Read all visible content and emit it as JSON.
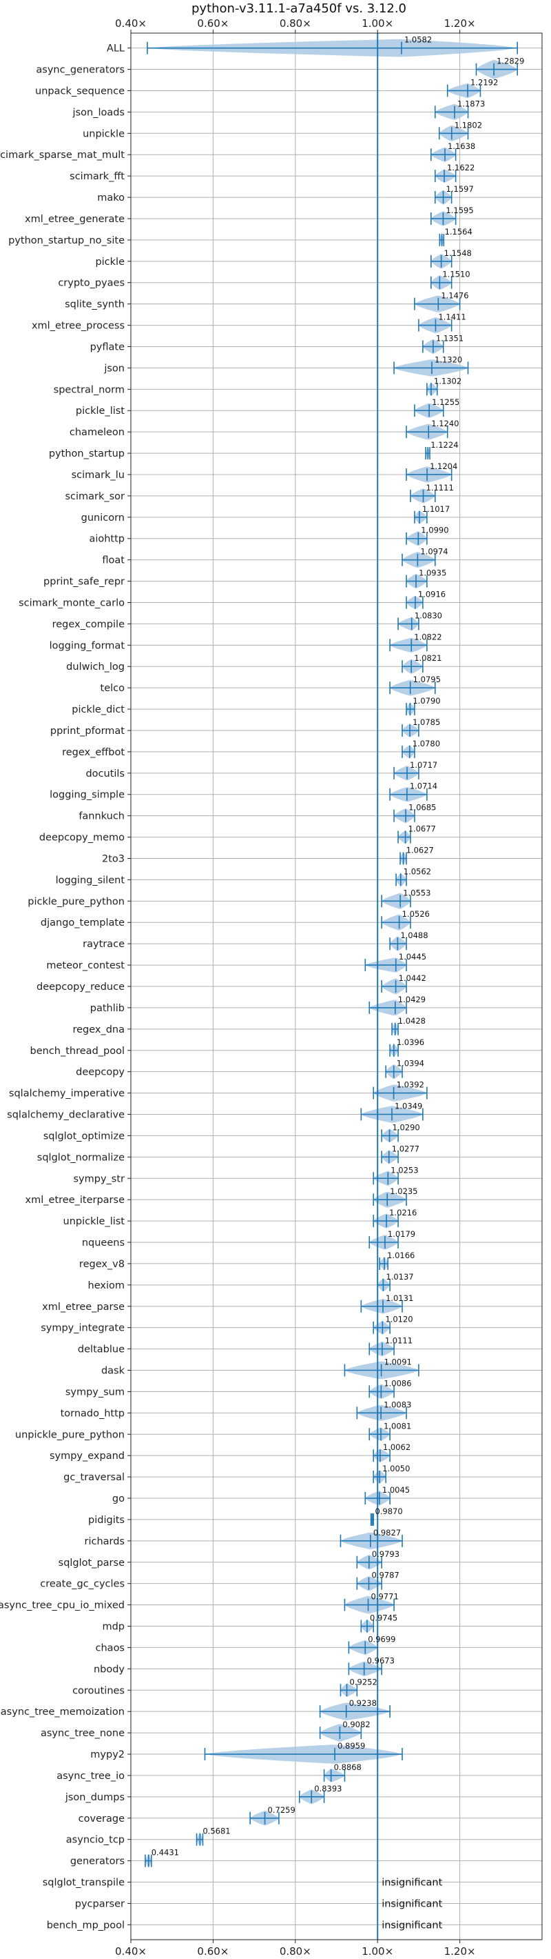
{
  "chart_data": {
    "type": "violin",
    "title": "python-v3.11.1-a7a450f vs. 3.12.0",
    "xlim": [
      0.4,
      1.4
    ],
    "reference_x": 1.0,
    "x_ticks": [
      0.4,
      0.6,
      0.8,
      1.0,
      1.2
    ],
    "x_tick_labels": [
      "0.40×",
      "0.60×",
      "0.80×",
      "1.00×",
      "1.20×"
    ],
    "insignificant_label": "insignificant",
    "colors": {
      "accent": "#1f77b4",
      "violin": "#a9c8e4",
      "grid": "#b0b0b0",
      "ref": "#1f77b4"
    },
    "benchmarks": [
      {
        "name": "ALL",
        "value": 1.0582,
        "label": "1.0582",
        "min": 0.44,
        "max": 1.34,
        "width": 0.42
      },
      {
        "name": "async_generators",
        "value": 1.2829,
        "label": "1.2829",
        "min": 1.24,
        "max": 1.34,
        "width": 0.45
      },
      {
        "name": "unpack_sequence",
        "value": 1.2192,
        "label": "1.2192",
        "min": 1.17,
        "max": 1.25,
        "width": 0.35
      },
      {
        "name": "json_loads",
        "value": 1.1873,
        "label": "1.1873",
        "min": 1.14,
        "max": 1.22,
        "width": 0.38
      },
      {
        "name": "unpickle",
        "value": 1.1802,
        "label": "1.1802",
        "min": 1.15,
        "max": 1.22,
        "width": 0.38
      },
      {
        "name": "scimark_sparse_mat_mult",
        "value": 1.1638,
        "label": "1.1638",
        "min": 1.13,
        "max": 1.19,
        "width": 0.35
      },
      {
        "name": "scimark_fft",
        "value": 1.1622,
        "label": "1.1622",
        "min": 1.14,
        "max": 1.19,
        "width": 0.32
      },
      {
        "name": "mako",
        "value": 1.1597,
        "label": "1.1597",
        "min": 1.14,
        "max": 1.18,
        "width": 0.35
      },
      {
        "name": "xml_etree_generate",
        "value": 1.1595,
        "label": "1.1595",
        "min": 1.13,
        "max": 1.19,
        "width": 0.35
      },
      {
        "name": "python_startup_no_site",
        "value": 1.1564,
        "label": "1.1564",
        "min": 1.151,
        "max": 1.161,
        "width": 0.32
      },
      {
        "name": "pickle",
        "value": 1.1548,
        "label": "1.1548",
        "min": 1.13,
        "max": 1.18,
        "width": 0.35
      },
      {
        "name": "crypto_pyaes",
        "value": 1.151,
        "label": "1.1510",
        "min": 1.13,
        "max": 1.18,
        "width": 0.35
      },
      {
        "name": "sqlite_synth",
        "value": 1.1476,
        "label": "1.1476",
        "min": 1.09,
        "max": 1.2,
        "width": 0.4
      },
      {
        "name": "xml_etree_process",
        "value": 1.1411,
        "label": "1.1411",
        "min": 1.1,
        "max": 1.18,
        "width": 0.38
      },
      {
        "name": "pyflate",
        "value": 1.1351,
        "label": "1.1351",
        "min": 1.11,
        "max": 1.16,
        "width": 0.35
      },
      {
        "name": "json",
        "value": 1.132,
        "label": "1.1320",
        "min": 1.04,
        "max": 1.22,
        "width": 0.4
      },
      {
        "name": "spectral_norm",
        "value": 1.1302,
        "label": "1.1302",
        "min": 1.12,
        "max": 1.145,
        "width": 0.32
      },
      {
        "name": "pickle_list",
        "value": 1.1255,
        "label": "1.1255",
        "min": 1.09,
        "max": 1.16,
        "width": 0.35
      },
      {
        "name": "chameleon",
        "value": 1.124,
        "label": "1.1240",
        "min": 1.07,
        "max": 1.17,
        "width": 0.38
      },
      {
        "name": "python_startup",
        "value": 1.1224,
        "label": "1.1224",
        "min": 1.117,
        "max": 1.127,
        "width": 0.32
      },
      {
        "name": "scimark_lu",
        "value": 1.1204,
        "label": "1.1204",
        "min": 1.07,
        "max": 1.18,
        "width": 0.38
      },
      {
        "name": "scimark_sor",
        "value": 1.1111,
        "label": "1.1111",
        "min": 1.08,
        "max": 1.14,
        "width": 0.35
      },
      {
        "name": "gunicorn",
        "value": 1.1017,
        "label": "1.1017",
        "min": 1.09,
        "max": 1.12,
        "width": 0.32
      },
      {
        "name": "aiohttp",
        "value": 1.099,
        "label": "1.0990",
        "min": 1.07,
        "max": 1.12,
        "width": 0.35
      },
      {
        "name": "float",
        "value": 1.0974,
        "label": "1.0974",
        "min": 1.06,
        "max": 1.14,
        "width": 0.38
      },
      {
        "name": "pprint_safe_repr",
        "value": 1.0935,
        "label": "1.0935",
        "min": 1.07,
        "max": 1.12,
        "width": 0.35
      },
      {
        "name": "scimark_monte_carlo",
        "value": 1.0916,
        "label": "1.0916",
        "min": 1.07,
        "max": 1.11,
        "width": 0.32
      },
      {
        "name": "regex_compile",
        "value": 1.083,
        "label": "1.0830",
        "min": 1.05,
        "max": 1.1,
        "width": 0.32
      },
      {
        "name": "logging_format",
        "value": 1.0822,
        "label": "1.0822",
        "min": 1.03,
        "max": 1.12,
        "width": 0.35
      },
      {
        "name": "dulwich_log",
        "value": 1.0821,
        "label": "1.0821",
        "min": 1.06,
        "max": 1.11,
        "width": 0.35
      },
      {
        "name": "telco",
        "value": 1.0795,
        "label": "1.0795",
        "min": 1.03,
        "max": 1.14,
        "width": 0.38
      },
      {
        "name": "pickle_dict",
        "value": 1.079,
        "label": "1.0790",
        "min": 1.07,
        "max": 1.09,
        "width": 0.32
      },
      {
        "name": "pprint_pformat",
        "value": 1.0785,
        "label": "1.0785",
        "min": 1.06,
        "max": 1.1,
        "width": 0.32
      },
      {
        "name": "regex_effbot",
        "value": 1.078,
        "label": "1.0780",
        "min": 1.06,
        "max": 1.09,
        "width": 0.32
      },
      {
        "name": "docutils",
        "value": 1.0717,
        "label": "1.0717",
        "min": 1.04,
        "max": 1.1,
        "width": 0.35
      },
      {
        "name": "logging_simple",
        "value": 1.0714,
        "label": "1.0714",
        "min": 1.03,
        "max": 1.12,
        "width": 0.35
      },
      {
        "name": "fannkuch",
        "value": 1.0685,
        "label": "1.0685",
        "min": 1.04,
        "max": 1.09,
        "width": 0.35
      },
      {
        "name": "deepcopy_memo",
        "value": 1.0677,
        "label": "1.0677",
        "min": 1.05,
        "max": 1.08,
        "width": 0.32
      },
      {
        "name": "2to3",
        "value": 1.0627,
        "label": "1.0627",
        "min": 1.055,
        "max": 1.07,
        "width": 0.32
      },
      {
        "name": "logging_silent",
        "value": 1.0562,
        "label": "1.0562",
        "min": 1.045,
        "max": 1.07,
        "width": 0.32
      },
      {
        "name": "pickle_pure_python",
        "value": 1.0553,
        "label": "1.0553",
        "min": 1.01,
        "max": 1.08,
        "width": 0.38
      },
      {
        "name": "django_template",
        "value": 1.0526,
        "label": "1.0526",
        "min": 1.01,
        "max": 1.08,
        "width": 0.38
      },
      {
        "name": "raytrace",
        "value": 1.0488,
        "label": "1.0488",
        "min": 1.03,
        "max": 1.07,
        "width": 0.35
      },
      {
        "name": "meteor_contest",
        "value": 1.0445,
        "label": "1.0445",
        "min": 0.97,
        "max": 1.07,
        "width": 0.35
      },
      {
        "name": "deepcopy_reduce",
        "value": 1.0442,
        "label": "1.0442",
        "min": 1.01,
        "max": 1.07,
        "width": 0.38
      },
      {
        "name": "pathlib",
        "value": 1.0429,
        "label": "1.0429",
        "min": 0.98,
        "max": 1.07,
        "width": 0.38
      },
      {
        "name": "regex_dna",
        "value": 1.0428,
        "label": "1.0428",
        "min": 1.035,
        "max": 1.05,
        "width": 0.32
      },
      {
        "name": "bench_thread_pool",
        "value": 1.0396,
        "label": "1.0396",
        "min": 1.03,
        "max": 1.05,
        "width": 0.32
      },
      {
        "name": "deepcopy",
        "value": 1.0394,
        "label": "1.0394",
        "min": 1.02,
        "max": 1.06,
        "width": 0.35
      },
      {
        "name": "sqlalchemy_imperative",
        "value": 1.0392,
        "label": "1.0392",
        "min": 0.99,
        "max": 1.12,
        "width": 0.4
      },
      {
        "name": "sqlalchemy_declarative",
        "value": 1.0349,
        "label": "1.0349",
        "min": 0.96,
        "max": 1.11,
        "width": 0.4
      },
      {
        "name": "sqlglot_optimize",
        "value": 1.029,
        "label": "1.0290",
        "min": 1.01,
        "max": 1.05,
        "width": 0.32
      },
      {
        "name": "sqlglot_normalize",
        "value": 1.0277,
        "label": "1.0277",
        "min": 1.01,
        "max": 1.05,
        "width": 0.32
      },
      {
        "name": "sympy_str",
        "value": 1.0253,
        "label": "1.0253",
        "min": 0.99,
        "max": 1.05,
        "width": 0.35
      },
      {
        "name": "xml_etree_iterparse",
        "value": 1.0235,
        "label": "1.0235",
        "min": 0.99,
        "max": 1.07,
        "width": 0.38
      },
      {
        "name": "unpickle_list",
        "value": 1.0216,
        "label": "1.0216",
        "min": 0.99,
        "max": 1.05,
        "width": 0.35
      },
      {
        "name": "nqueens",
        "value": 1.0179,
        "label": "1.0179",
        "min": 0.98,
        "max": 1.05,
        "width": 0.35
      },
      {
        "name": "regex_v8",
        "value": 1.0166,
        "label": "1.0166",
        "min": 1.005,
        "max": 1.025,
        "width": 0.32
      },
      {
        "name": "hexiom",
        "value": 1.0137,
        "label": "1.0137",
        "min": 1.0,
        "max": 1.03,
        "width": 0.32
      },
      {
        "name": "xml_etree_parse",
        "value": 1.0131,
        "label": "1.0131",
        "min": 0.96,
        "max": 1.06,
        "width": 0.35
      },
      {
        "name": "sympy_integrate",
        "value": 1.012,
        "label": "1.0120",
        "min": 0.99,
        "max": 1.03,
        "width": 0.32
      },
      {
        "name": "deltablue",
        "value": 1.0111,
        "label": "1.0111",
        "min": 0.98,
        "max": 1.04,
        "width": 0.35
      },
      {
        "name": "dask",
        "value": 1.0091,
        "label": "1.0091",
        "min": 0.92,
        "max": 1.1,
        "width": 0.42
      },
      {
        "name": "sympy_sum",
        "value": 1.0086,
        "label": "1.0086",
        "min": 0.98,
        "max": 1.04,
        "width": 0.35
      },
      {
        "name": "tornado_http",
        "value": 1.0083,
        "label": "1.0083",
        "min": 0.95,
        "max": 1.07,
        "width": 0.38
      },
      {
        "name": "unpickle_pure_python",
        "value": 1.0081,
        "label": "1.0081",
        "min": 0.98,
        "max": 1.03,
        "width": 0.32
      },
      {
        "name": "sympy_expand",
        "value": 1.0062,
        "label": "1.0062",
        "min": 0.99,
        "max": 1.03,
        "width": 0.32
      },
      {
        "name": "gc_traversal",
        "value": 1.005,
        "label": "1.0050",
        "min": 0.99,
        "max": 1.02,
        "width": 0.32
      },
      {
        "name": "go",
        "value": 1.0045,
        "label": "1.0045",
        "min": 0.97,
        "max": 1.03,
        "width": 0.35
      },
      {
        "name": "pidigits",
        "value": 0.987,
        "label": "0.9870",
        "min": 0.984,
        "max": 0.99,
        "width": 0.32
      },
      {
        "name": "richards",
        "value": 0.9827,
        "label": "0.9827",
        "min": 0.91,
        "max": 1.06,
        "width": 0.4
      },
      {
        "name": "sqlglot_parse",
        "value": 0.9793,
        "label": "0.9793",
        "min": 0.95,
        "max": 1.01,
        "width": 0.35
      },
      {
        "name": "create_gc_cycles",
        "value": 0.9787,
        "label": "0.9787",
        "min": 0.95,
        "max": 1.01,
        "width": 0.35
      },
      {
        "name": "async_tree_cpu_io_mixed",
        "value": 0.9771,
        "label": "0.9771",
        "min": 0.92,
        "max": 1.04,
        "width": 0.42
      },
      {
        "name": "mdp",
        "value": 0.9745,
        "label": "0.9745",
        "min": 0.96,
        "max": 0.99,
        "width": 0.32
      },
      {
        "name": "chaos",
        "value": 0.9699,
        "label": "0.9699",
        "min": 0.93,
        "max": 1.0,
        "width": 0.35
      },
      {
        "name": "nbody",
        "value": 0.9673,
        "label": "0.9673",
        "min": 0.93,
        "max": 1.01,
        "width": 0.35
      },
      {
        "name": "coroutines",
        "value": 0.9252,
        "label": "0.9252",
        "min": 0.91,
        "max": 0.95,
        "width": 0.32
      },
      {
        "name": "async_tree_memoization",
        "value": 0.9238,
        "label": "0.9238",
        "min": 0.86,
        "max": 1.03,
        "width": 0.42
      },
      {
        "name": "async_tree_none",
        "value": 0.9082,
        "label": "0.9082",
        "min": 0.86,
        "max": 0.96,
        "width": 0.42
      },
      {
        "name": "mypy2",
        "value": 0.8959,
        "label": "0.8959",
        "min": 0.58,
        "max": 1.06,
        "width": 0.45
      },
      {
        "name": "async_tree_io",
        "value": 0.8868,
        "label": "0.8868",
        "min": 0.87,
        "max": 0.92,
        "width": 0.32
      },
      {
        "name": "json_dumps",
        "value": 0.8393,
        "label": "0.8393",
        "min": 0.81,
        "max": 0.87,
        "width": 0.35
      },
      {
        "name": "coverage",
        "value": 0.7259,
        "label": "0.7259",
        "min": 0.69,
        "max": 0.76,
        "width": 0.35
      },
      {
        "name": "asyncio_tcp",
        "value": 0.5681,
        "label": "0.5681",
        "min": 0.56,
        "max": 0.575,
        "width": 0.32
      },
      {
        "name": "generators",
        "value": 0.4431,
        "label": "0.4431",
        "min": 0.435,
        "max": 0.45,
        "width": 0.32
      },
      {
        "name": "sqlglot_transpile",
        "value": null,
        "label": "insignificant"
      },
      {
        "name": "pycparser",
        "value": null,
        "label": "insignificant"
      },
      {
        "name": "bench_mp_pool",
        "value": null,
        "label": "insignificant"
      }
    ]
  }
}
